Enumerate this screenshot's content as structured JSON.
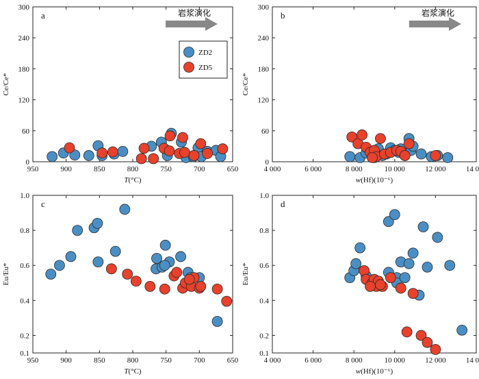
{
  "colors": {
    "ZD2": "#4a8fc4",
    "ZD5": "#e8412c",
    "point_stroke": "#2a2a2a",
    "arrow": "#888888"
  },
  "chart_data": [
    {
      "id": "a",
      "panel_label": "a",
      "type": "scatter",
      "xlabel_italic": "T",
      "xlabel_rest": "(°C)",
      "ylabel": "Ce/Ce*",
      "xlim": [
        950,
        650
      ],
      "x_reversed": true,
      "ylim": [
        0,
        300
      ],
      "xticks": [
        950,
        900,
        850,
        800,
        750,
        700,
        650
      ],
      "xtick_labels": [
        "950",
        "900",
        "850",
        "800",
        "750",
        "700",
        "650"
      ],
      "yticks": [
        0,
        60,
        120,
        180,
        240,
        300
      ],
      "ytick_labels": [
        "0",
        "60",
        "120",
        "180",
        "240",
        "300"
      ],
      "arrow_label": "岩浆演化",
      "legend": {
        "entries": [
          "ZD2",
          "ZD5"
        ],
        "position": "upper-right"
      },
      "series": [
        {
          "name": "ZD2",
          "points": [
            [
              921,
              10
            ],
            [
              904,
              17
            ],
            [
              887,
              13
            ],
            [
              866,
              12
            ],
            [
              852,
              31
            ],
            [
              846,
              12
            ],
            [
              828,
              15
            ],
            [
              815,
              20
            ],
            [
              772,
              30
            ],
            [
              757,
              38
            ],
            [
              748,
              12
            ],
            [
              742,
              55
            ],
            [
              727,
              38
            ],
            [
              720,
              8
            ],
            [
              709,
              10
            ],
            [
              702,
              27
            ],
            [
              697,
              10
            ],
            [
              688,
              20
            ],
            [
              675,
              22
            ],
            [
              668,
              10
            ]
          ]
        },
        {
          "name": "ZD5",
          "points": [
            [
              895,
              27
            ],
            [
              846,
              17
            ],
            [
              830,
              19
            ],
            [
              787,
              6
            ],
            [
              783,
              26
            ],
            [
              769,
              6
            ],
            [
              753,
              26
            ],
            [
              744,
              50
            ],
            [
              745,
              21
            ],
            [
              730,
              16
            ],
            [
              725,
              47
            ],
            [
              722,
              18
            ],
            [
              708,
              12
            ],
            [
              698,
              35
            ],
            [
              688,
              16
            ],
            [
              665,
              25
            ]
          ]
        }
      ]
    },
    {
      "id": "b",
      "panel_label": "b",
      "type": "scatter",
      "xlabel_italic": "w",
      "xlabel_rest": "(Hf)(10⁻⁶)",
      "ylabel": "Ce/Ce*",
      "xlim": [
        4000,
        14000
      ],
      "ylim": [
        0,
        300
      ],
      "xticks": [
        4000,
        6000,
        8000,
        10000,
        12000,
        14000
      ],
      "xtick_labels": [
        "4 000",
        "6 000",
        "8 000",
        "10 000",
        "12 000",
        "14 000"
      ],
      "yticks": [
        0,
        60,
        120,
        180,
        240,
        300
      ],
      "ytick_labels": [
        "0",
        "60",
        "120",
        "180",
        "240",
        "300"
      ],
      "arrow_label": "岩浆演化",
      "series": [
        {
          "name": "ZD2",
          "points": [
            [
              7800,
              10
            ],
            [
              8300,
              8
            ],
            [
              8600,
              17
            ],
            [
              8900,
              20
            ],
            [
              9200,
              25
            ],
            [
              9400,
              12
            ],
            [
              9600,
              15
            ],
            [
              9800,
              27
            ],
            [
              10000,
              22
            ],
            [
              10200,
              18
            ],
            [
              10300,
              25
            ],
            [
              10500,
              12
            ],
            [
              10700,
              45
            ],
            [
              10800,
              22
            ],
            [
              10900,
              30
            ],
            [
              11300,
              15
            ],
            [
              11800,
              10
            ],
            [
              12100,
              12
            ],
            [
              12600,
              8
            ],
            [
              9000,
              8
            ]
          ]
        },
        {
          "name": "ZD5",
          "points": [
            [
              7900,
              48
            ],
            [
              8200,
              35
            ],
            [
              8400,
              52
            ],
            [
              8600,
              28
            ],
            [
              8800,
              18
            ],
            [
              9000,
              22
            ],
            [
              9100,
              10
            ],
            [
              9300,
              45
            ],
            [
              9500,
              15
            ],
            [
              9800,
              18
            ],
            [
              10100,
              22
            ],
            [
              10300,
              20
            ],
            [
              10500,
              12
            ],
            [
              10700,
              35
            ],
            [
              12000,
              12
            ],
            [
              8900,
              8
            ]
          ]
        }
      ]
    },
    {
      "id": "c",
      "panel_label": "c",
      "type": "scatter",
      "xlabel_italic": "T",
      "xlabel_rest": "(°C)",
      "ylabel": "Eu/Eu*",
      "xlim": [
        950,
        650
      ],
      "x_reversed": true,
      "ylim": [
        0.1,
        1.0
      ],
      "xticks": [
        950,
        900,
        850,
        800,
        750,
        700,
        650
      ],
      "xtick_labels": [
        "950",
        "900",
        "850",
        "800",
        "750",
        "700",
        "650"
      ],
      "yticks": [
        0.1,
        0.2,
        0.4,
        0.6,
        0.8,
        1.0
      ],
      "ytick_labels": [
        "0.1",
        "0.2",
        "0.4",
        "0.6",
        "0.8",
        "1.0"
      ],
      "series": [
        {
          "name": "ZD2",
          "points": [
            [
              923,
              0.55
            ],
            [
              910,
              0.6
            ],
            [
              893,
              0.65
            ],
            [
              883,
              0.8
            ],
            [
              858,
              0.815
            ],
            [
              853,
              0.84
            ],
            [
              852,
              0.62
            ],
            [
              826,
              0.68
            ],
            [
              812,
              0.92
            ],
            [
              764,
              0.64
            ],
            [
              765,
              0.58
            ],
            [
              756,
              0.59
            ],
            [
              751,
              0.715
            ],
            [
              745,
              0.62
            ],
            [
              728,
              0.65
            ],
            [
              717,
              0.56
            ],
            [
              713,
              0.53
            ],
            [
              700,
              0.53
            ],
            [
              673,
              0.28
            ],
            [
              752,
              0.6
            ]
          ]
        },
        {
          "name": "ZD5",
          "points": [
            [
              832,
              0.58
            ],
            [
              808,
              0.55
            ],
            [
              795,
              0.51
            ],
            [
              774,
              0.48
            ],
            [
              752,
              0.465
            ],
            [
              738,
              0.54
            ],
            [
              734,
              0.56
            ],
            [
              725,
              0.47
            ],
            [
              721,
              0.5
            ],
            [
              712,
              0.48
            ],
            [
              708,
              0.53
            ],
            [
              700,
              0.47
            ],
            [
              698,
              0.48
            ],
            [
              673,
              0.465
            ],
            [
              659,
              0.395
            ],
            [
              715,
              0.52
            ]
          ]
        }
      ]
    },
    {
      "id": "d",
      "panel_label": "d",
      "type": "scatter",
      "xlabel_italic": "w",
      "xlabel_rest": "(Hf)(10⁻⁶)",
      "ylabel": "Eu/Eu*",
      "xlim": [
        4000,
        14000
      ],
      "ylim": [
        0.1,
        1.0
      ],
      "xticks": [
        4000,
        6000,
        8000,
        10000,
        12000,
        14000
      ],
      "xtick_labels": [
        "4 000",
        "6 000",
        "8 000",
        "10 000",
        "12 000",
        "14 000"
      ],
      "yticks": [
        0.1,
        0.2,
        0.4,
        0.6,
        0.8,
        1.0
      ],
      "ytick_labels": [
        "0.1",
        "0.2",
        "0.4",
        "0.6",
        "0.8",
        "1.0"
      ],
      "series": [
        {
          "name": "ZD2",
          "points": [
            [
              7800,
              0.53
            ],
            [
              8000,
              0.57
            ],
            [
              8100,
              0.61
            ],
            [
              8300,
              0.7
            ],
            [
              8600,
              0.54
            ],
            [
              9700,
              0.85
            ],
            [
              9700,
              0.56
            ],
            [
              10000,
              0.89
            ],
            [
              10100,
              0.53
            ],
            [
              10100,
              0.5
            ],
            [
              10300,
              0.62
            ],
            [
              10500,
              0.53
            ],
            [
              10700,
              0.61
            ],
            [
              10900,
              0.67
            ],
            [
              11200,
              0.43
            ],
            [
              11400,
              0.82
            ],
            [
              11600,
              0.59
            ],
            [
              12100,
              0.76
            ],
            [
              12700,
              0.6
            ],
            [
              13300,
              0.23
            ]
          ]
        },
        {
          "name": "ZD5",
          "points": [
            [
              8500,
              0.57
            ],
            [
              8600,
              0.52
            ],
            [
              8900,
              0.5
            ],
            [
              9000,
              0.52
            ],
            [
              9100,
              0.48
            ],
            [
              9200,
              0.51
            ],
            [
              9400,
              0.48
            ],
            [
              10300,
              0.47
            ],
            [
              10600,
              0.22
            ],
            [
              10900,
              0.44
            ],
            [
              11300,
              0.2
            ],
            [
              11600,
              0.16
            ],
            [
              12000,
              0.12
            ],
            [
              8800,
              0.48
            ],
            [
              9300,
              0.49
            ],
            [
              9800,
              0.53
            ]
          ]
        }
      ]
    }
  ]
}
